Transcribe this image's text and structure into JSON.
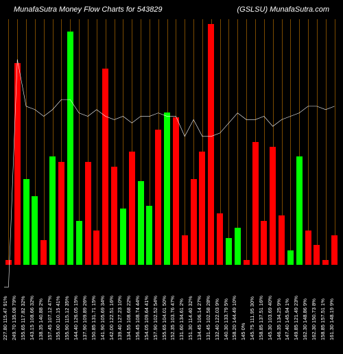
{
  "header": {
    "title_left": "MunafaSutra  Money Flow  Charts for 543829",
    "title_right": "(GSLSU) MunafaSutra.com"
  },
  "chart": {
    "type": "bar+line",
    "background_color": "#000000",
    "grid_color": "#7a4a00",
    "bar_width_ratio": 0.7,
    "colors": {
      "up": "#00ff00",
      "down": "#ff0000",
      "line": "#ffffff"
    },
    "ylim": [
      0,
      100
    ],
    "line_ylim": [
      0,
      100
    ],
    "bars": [
      {
        "value": 2,
        "dir": "down",
        "label": "227.80 115.47 91%"
      },
      {
        "value": 82,
        "dir": "down",
        "label": "249.70 135.08 79%"
      },
      {
        "value": 35,
        "dir": "up",
        "label": "155.65 117.82 32%"
      },
      {
        "value": 28,
        "dir": "up",
        "label": "143.15 108.66 32%"
      },
      {
        "value": 10,
        "dir": "down",
        "label": "138.35 140.88 2%"
      },
      {
        "value": 44,
        "dir": "up",
        "label": "157.45 107.12 47%"
      },
      {
        "value": 42,
        "dir": "down",
        "label": "155.00 110.15 41%"
      },
      {
        "value": 95,
        "dir": "up",
        "label": "155.90 115.12 35%"
      },
      {
        "value": 18,
        "dir": "up",
        "label": "144.40 126.05 15%"
      },
      {
        "value": 42,
        "dir": "down",
        "label": "137.90 109.89 26%"
      },
      {
        "value": 14,
        "dir": "down",
        "label": "150.85 131.71 15%"
      },
      {
        "value": 80,
        "dir": "down",
        "label": "141.90 105.69 34%"
      },
      {
        "value": 40,
        "dir": "down",
        "label": "142.00 122.51 16%"
      },
      {
        "value": 23,
        "dir": "up",
        "label": "139.40 127.23 10%"
      },
      {
        "value": 46,
        "dir": "down",
        "label": "134.55 108.68 22%"
      },
      {
        "value": 34,
        "dir": "up",
        "label": "156.45 108.74 44%"
      },
      {
        "value": 24,
        "dir": "up",
        "label": "154.05 109.64 41%"
      },
      {
        "value": 55,
        "dir": "down",
        "label": "157.90 102.52 54%"
      },
      {
        "value": 62,
        "dir": "up",
        "label": "155.65 104.01 50%"
      },
      {
        "value": 60,
        "dir": "down",
        "label": "152.35 103.76 47%"
      },
      {
        "value": 12,
        "dir": "down",
        "label": "131.60 134.61 2%"
      },
      {
        "value": 35,
        "dir": "down",
        "label": "151.30 114.40 32%"
      },
      {
        "value": 46,
        "dir": "down",
        "label": "134.45 106.14 27%"
      },
      {
        "value": 98,
        "dir": "down",
        "label": "131.45 102.58 28%"
      },
      {
        "value": 21,
        "dir": "down",
        "label": "132.40 122.03 9%"
      },
      {
        "value": 11,
        "dir": "up",
        "label": "140.30 133.79 5%"
      },
      {
        "value": 15,
        "dir": "up",
        "label": "158.20 144.49 10%"
      },
      {
        "value": 2,
        "dir": "down",
        "label": "145 0%"
      },
      {
        "value": 50,
        "dir": "down",
        "label": "145.75 111.95 30%"
      },
      {
        "value": 18,
        "dir": "down",
        "label": "158.85 137.51 16%"
      },
      {
        "value": 48,
        "dir": "down",
        "label": "145.30 103.69 40%"
      },
      {
        "value": 20,
        "dir": "down",
        "label": "146.35 134.25 9%"
      },
      {
        "value": 6,
        "dir": "up",
        "label": "147.40 145.94 1%"
      },
      {
        "value": 44,
        "dir": "up",
        "label": "149.85 121.49 23%"
      },
      {
        "value": 14,
        "dir": "down",
        "label": "162.30 148.86 9%"
      },
      {
        "value": 8,
        "dir": "down",
        "label": "162.30 150.73 8%"
      },
      {
        "value": 2,
        "dir": "down",
        "label": "158.85 157.51 1%"
      },
      {
        "value": 12,
        "dir": "down",
        "label": "161.30 148.19 9%"
      }
    ],
    "line_points": [
      20,
      88,
      74,
      73,
      71,
      73,
      76,
      76,
      72,
      71,
      73,
      71,
      70,
      71,
      69,
      71,
      71,
      72,
      71,
      71,
      65,
      70,
      65,
      65,
      66,
      69,
      72,
      70,
      70,
      71,
      68,
      70,
      71,
      72,
      74,
      74,
      73,
      74
    ]
  }
}
